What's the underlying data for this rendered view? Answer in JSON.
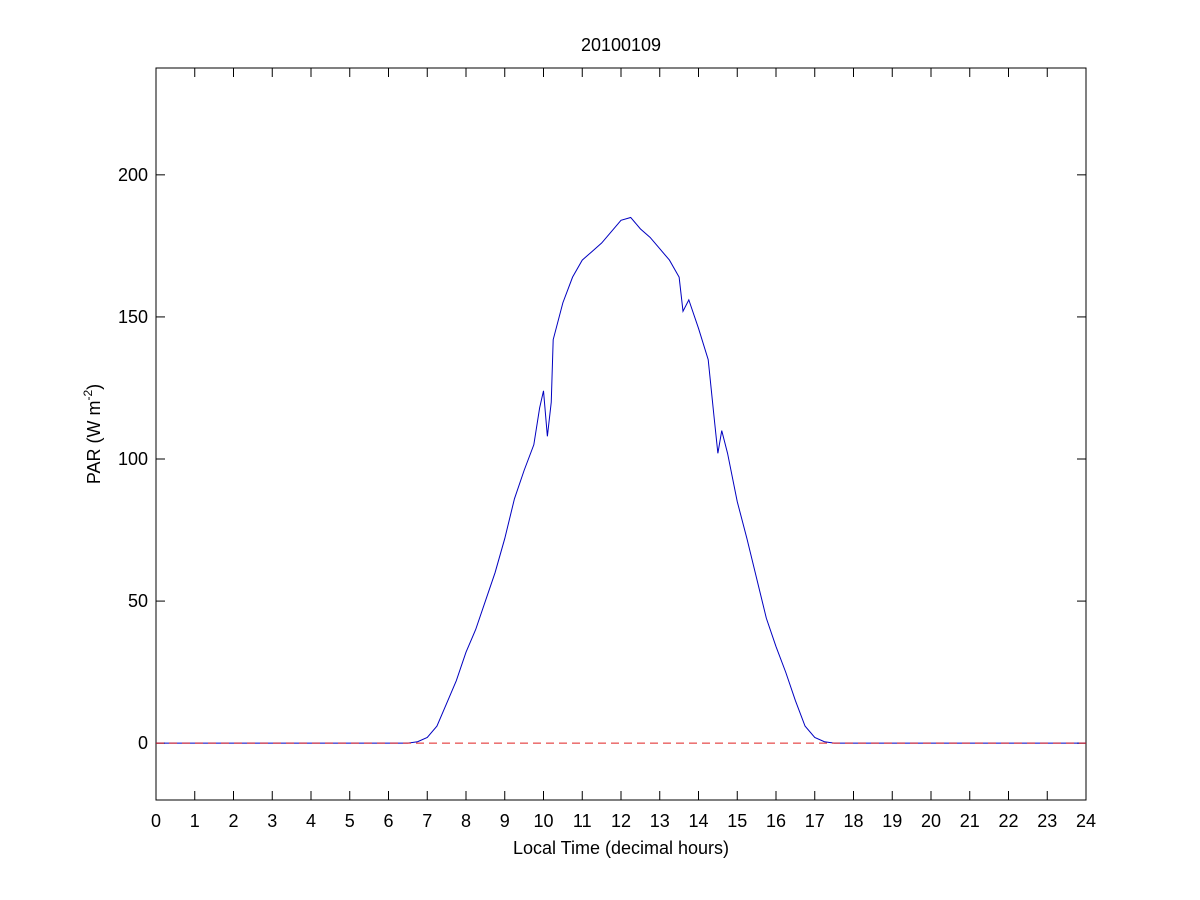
{
  "chart_data": {
    "type": "line",
    "title": "20100109",
    "xlabel": "Local Time (decimal hours)",
    "ylabel": {
      "text": "PAR (W m",
      "sup": "-2",
      "end": ")"
    },
    "xlim": [
      0,
      24
    ],
    "xticks": [
      0,
      1,
      2,
      3,
      4,
      5,
      6,
      7,
      8,
      9,
      10,
      11,
      12,
      13,
      14,
      15,
      16,
      17,
      18,
      19,
      20,
      21,
      22,
      23,
      24
    ],
    "ylim": [
      -20,
      237.6
    ],
    "yticks": [
      0,
      50,
      100,
      150,
      200
    ],
    "series": [
      {
        "color": "#0000c0",
        "style": "solid",
        "x": [
          0,
          1,
          2,
          3,
          4,
          5,
          6,
          6.5,
          6.75,
          7,
          7.25,
          7.5,
          7.75,
          8,
          8.25,
          8.5,
          8.75,
          9,
          9.25,
          9.5,
          9.75,
          9.9,
          10,
          10.1,
          10.2,
          10.25,
          10.5,
          10.75,
          11,
          11.25,
          11.5,
          11.75,
          12,
          12.25,
          12.5,
          12.75,
          13,
          13.25,
          13.5,
          13.6,
          13.75,
          14,
          14.25,
          14.4,
          14.5,
          14.6,
          14.75,
          15,
          15.25,
          15.5,
          15.75,
          16,
          16.25,
          16.5,
          16.75,
          17,
          17.25,
          17.5,
          18,
          19,
          20,
          21,
          22,
          23,
          24
        ],
        "values": [
          0,
          0,
          0,
          0,
          0,
          0,
          0,
          0,
          0.5,
          2,
          6,
          14,
          22,
          32,
          40,
          50,
          60,
          72,
          86,
          96,
          105,
          118,
          124,
          108,
          120,
          142,
          155,
          164,
          170,
          173,
          176,
          180,
          184,
          185,
          181,
          178,
          174,
          170,
          164,
          152,
          156,
          146,
          135,
          115,
          102,
          110,
          102,
          85,
          72,
          58,
          44,
          34,
          25,
          15,
          6,
          2,
          0.5,
          0,
          0,
          0,
          0,
          0,
          0,
          0,
          0
        ]
      },
      {
        "color": "#e02020",
        "style": "dashed",
        "x": [
          0,
          24
        ],
        "values": [
          0,
          0
        ]
      }
    ]
  }
}
